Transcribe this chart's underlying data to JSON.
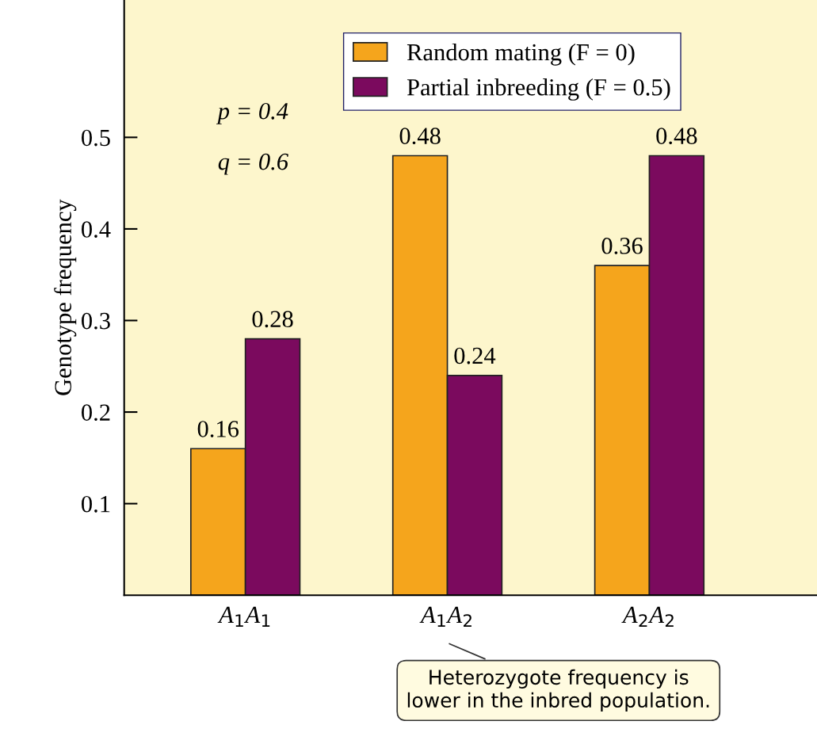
{
  "chart_data": {
    "type": "bar",
    "categories": [
      "A$_{1}$A$_{1}$",
      "A$_{1}$A$_{2}$",
      "A$_{2}$A$_{2}$"
    ],
    "series": [
      {
        "name": "Random mating (F = 0)",
        "color": "#f5a51c",
        "values": [
          0.16,
          0.48,
          0.36
        ]
      },
      {
        "name": "Partial inbreeding (F = 0.5)",
        "color": "#7b0a5e",
        "values": [
          0.28,
          0.24,
          0.48
        ]
      }
    ],
    "ylabel": "Genotype frequency",
    "ylim": [
      0,
      0.65
    ],
    "yticks": [
      0.1,
      0.2,
      0.3,
      0.4,
      0.5
    ],
    "data_labels": true,
    "legend": "top",
    "grid": false,
    "annotations": [
      {
        "text": "p = 0.4"
      },
      {
        "text": "q = 0.6"
      },
      "Heterozygote frequency is\nlower in the inbred population."
    ]
  }
}
